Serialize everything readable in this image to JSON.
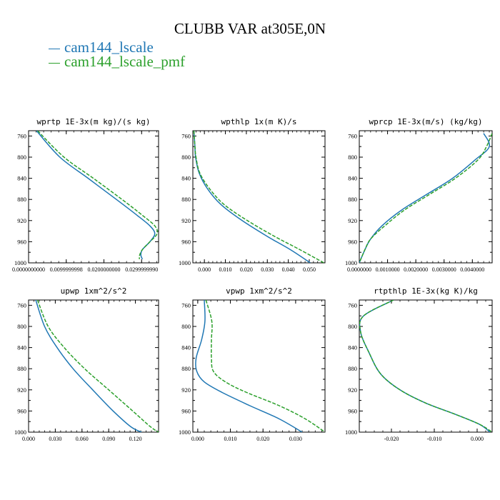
{
  "title": "CLUBB VAR at305E,0N",
  "legend": [
    {
      "label": "cam144_lscale",
      "color": "#1f77b4"
    },
    {
      "label": "cam144_lscale_pmf",
      "color": "#2ca02c"
    }
  ],
  "chart_data": [
    {
      "type": "line",
      "title": "wprtp  1E-3x(m kg)/(s kg)",
      "xlim": [
        0.0,
        0.0345
      ],
      "ylim": [
        1000,
        750
      ],
      "xticks": [
        0.0,
        0.01,
        0.02,
        0.03
      ],
      "xtick_labels": [
        "0.0000000000",
        "0.0099999998",
        "0.0200000000",
        "0.0299999990"
      ],
      "yticks": [
        760,
        800,
        840,
        880,
        920,
        960,
        1000
      ],
      "series": [
        {
          "name": "cam144_lscale",
          "color": "#1f77b4",
          "dash": "none",
          "x": [
            0.0021,
            0.0083,
            0.0158,
            0.0233,
            0.0288,
            0.0322,
            0.0335,
            0.0322,
            0.0302,
            0.0298,
            0.0302
          ],
          "y": [
            750,
            800,
            840,
            880,
            910,
            930,
            945,
            960,
            975,
            985,
            993
          ]
        },
        {
          "name": "cam144_lscale_pmf",
          "color": "#2ca02c",
          "dash": "5,2",
          "x": [
            0.0024,
            0.0094,
            0.0172,
            0.0248,
            0.0302,
            0.0335,
            0.0341,
            0.0322,
            0.0302,
            0.0295,
            0.0294
          ],
          "y": [
            750,
            800,
            840,
            880,
            910,
            930,
            945,
            960,
            975,
            985,
            993
          ]
        }
      ]
    },
    {
      "type": "line",
      "title": "wpthlp  1x(m K)/s",
      "xlim": [
        -0.0055,
        0.0575
      ],
      "ylim": [
        1000,
        750
      ],
      "xticks": [
        0.0,
        0.01,
        0.02,
        0.03,
        0.04,
        0.05
      ],
      "xtick_labels": [
        "0.000",
        "0.010",
        "0.020",
        "0.030",
        "0.040",
        "0.050"
      ],
      "yticks": [
        760,
        800,
        840,
        880,
        920,
        960,
        1000
      ],
      "series": [
        {
          "name": "cam144_lscale",
          "color": "#1f77b4",
          "dash": "none",
          "x": [
            -0.005,
            -0.0045,
            -0.0042,
            -0.0025,
            0.0015,
            0.008,
            0.018,
            0.03,
            0.041,
            0.0505
          ],
          "y": [
            750,
            780,
            800,
            830,
            860,
            890,
            920,
            950,
            975,
            1000
          ]
        },
        {
          "name": "cam144_lscale_pmf",
          "color": "#2ca02c",
          "dash": "5,2",
          "x": [
            -0.005,
            -0.0045,
            -0.004,
            -0.0022,
            0.0025,
            0.0095,
            0.0205,
            0.0335,
            0.0455,
            0.057
          ],
          "y": [
            750,
            780,
            800,
            830,
            860,
            890,
            920,
            950,
            975,
            1000
          ]
        }
      ]
    },
    {
      "type": "line",
      "title": "wprcp  1E-3x(m/s) (kg/kg)",
      "xlim": [
        0.0,
        0.0047
      ],
      "ylim": [
        1000,
        750
      ],
      "xticks": [
        0.0,
        0.001,
        0.002,
        0.003,
        0.004
      ],
      "xtick_labels": [
        "0.0000000",
        "0.0010000",
        "0.0020000",
        "0.0030000",
        "0.0040000"
      ],
      "yticks": [
        760,
        800,
        840,
        880,
        920,
        960,
        1000
      ],
      "series": [
        {
          "name": "cam144_lscale",
          "color": "#1f77b4",
          "dash": "none",
          "x": [
            0.0044,
            0.0046,
            0.0041,
            0.0033,
            0.0024,
            0.0015,
            0.0008,
            0.0004,
            0.0002,
            0.0
          ],
          "y": [
            755,
            780,
            805,
            840,
            870,
            900,
            930,
            955,
            975,
            1000
          ]
        },
        {
          "name": "cam144_lscale_pmf",
          "color": "#2ca02c",
          "dash": "5,2",
          "x": [
            0.0047,
            0.0045,
            0.0042,
            0.0034,
            0.0025,
            0.0016,
            0.0009,
            0.0004,
            0.0002,
            0.0
          ],
          "y": [
            755,
            780,
            805,
            840,
            870,
            900,
            930,
            955,
            975,
            1000
          ]
        }
      ]
    },
    {
      "type": "line",
      "title": "upwp  1xm^2/s^2",
      "xlim": [
        0.0,
        0.146
      ],
      "ylim": [
        1000,
        750
      ],
      "xticks": [
        0.0,
        0.03,
        0.06,
        0.09,
        0.12
      ],
      "xtick_labels": [
        "0.000",
        "0.030",
        "0.060",
        "0.090",
        "0.120"
      ],
      "yticks": [
        760,
        800,
        840,
        880,
        920,
        960,
        1000
      ],
      "series": [
        {
          "name": "cam144_lscale",
          "color": "#1f77b4",
          "dash": "none",
          "x": [
            0.008,
            0.018,
            0.032,
            0.05,
            0.072,
            0.095,
            0.115,
            0.127
          ],
          "y": [
            750,
            800,
            840,
            880,
            920,
            960,
            990,
            1000
          ]
        },
        {
          "name": "cam144_lscale_pmf",
          "color": "#2ca02c",
          "dash": "5,2",
          "x": [
            0.01,
            0.022,
            0.04,
            0.063,
            0.09,
            0.117,
            0.137,
            0.146
          ],
          "y": [
            750,
            800,
            840,
            880,
            920,
            960,
            990,
            1000
          ]
        }
      ]
    },
    {
      "type": "line",
      "title": "vpwp  1xm^2/s^2",
      "xlim": [
        -0.0015,
        0.039
      ],
      "ylim": [
        1000,
        750
      ],
      "xticks": [
        0.0,
        0.01,
        0.02,
        0.03
      ],
      "xtick_labels": [
        "0.000",
        "0.010",
        "0.020",
        "0.030"
      ],
      "yticks": [
        760,
        800,
        840,
        880,
        920,
        960,
        1000
      ],
      "series": [
        {
          "name": "cam144_lscale",
          "color": "#1f77b4",
          "dash": "none",
          "x": [
            0.002,
            0.0022,
            0.0012,
            -0.0005,
            -0.0003,
            0.002,
            0.0075,
            0.016,
            0.025,
            0.032
          ],
          "y": [
            750,
            790,
            825,
            860,
            885,
            905,
            925,
            950,
            975,
            1000
          ]
        },
        {
          "name": "cam144_lscale_pmf",
          "color": "#2ca02c",
          "dash": "5,2",
          "x": [
            0.0025,
            0.0043,
            0.0042,
            0.0042,
            0.0048,
            0.0085,
            0.015,
            0.025,
            0.033,
            0.039
          ],
          "y": [
            750,
            790,
            825,
            860,
            885,
            905,
            925,
            950,
            975,
            1000
          ]
        }
      ]
    },
    {
      "type": "line",
      "title": "rtpthlp  1E-3x(kg K)/kg",
      "xlim": [
        -0.0275,
        0.0035
      ],
      "ylim": [
        1000,
        750
      ],
      "xticks": [
        -0.02,
        -0.01,
        0.0
      ],
      "xtick_labels": [
        "-0.020",
        "-0.010",
        "0.000"
      ],
      "yticks": [
        760,
        800,
        840,
        880,
        920,
        960,
        1000
      ],
      "series": [
        {
          "name": "cam144_lscale",
          "color": "#1f77b4",
          "dash": "none",
          "x": [
            -0.0195,
            -0.0265,
            -0.0272,
            -0.0252,
            -0.0225,
            -0.018,
            -0.012,
            -0.0055,
            0.0005,
            0.003
          ],
          "y": [
            750,
            780,
            810,
            850,
            890,
            920,
            945,
            965,
            985,
            1000
          ]
        },
        {
          "name": "cam144_lscale_pmf",
          "color": "#2ca02c",
          "dash": "5,2",
          "x": [
            -0.0195,
            -0.0265,
            -0.0272,
            -0.0252,
            -0.0225,
            -0.018,
            -0.012,
            -0.0055,
            0.0005,
            0.0035
          ],
          "y": [
            750,
            780,
            810,
            850,
            890,
            920,
            945,
            965,
            985,
            1000
          ]
        }
      ]
    }
  ]
}
